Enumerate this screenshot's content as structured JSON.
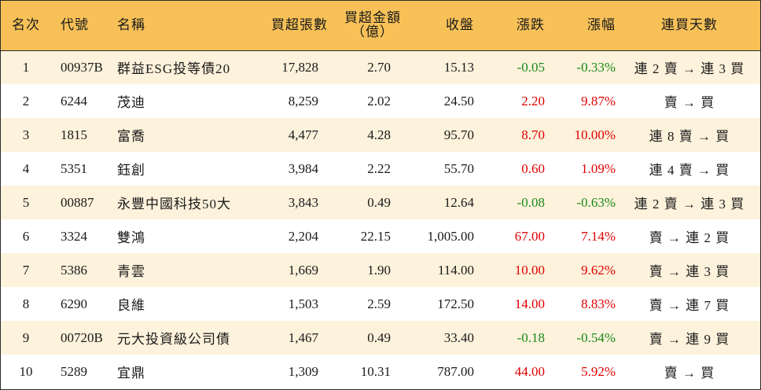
{
  "colors": {
    "header_bg": "#f7c158",
    "row_alt_bg": "#fdf2dc",
    "up": "#e00000",
    "down": "#1a8a1a"
  },
  "headers": {
    "rank": "名次",
    "code": "代號",
    "name": "名稱",
    "net_buy_lots": "買超張數",
    "net_buy_amount_line1": "買超金額",
    "net_buy_amount_line2": "（億）",
    "close": "收盤",
    "change": "漲跌",
    "change_pct": "漲幅",
    "buy_streak": "連買天數"
  },
  "rows": [
    {
      "rank": "1",
      "code": "00937B",
      "name": "群益ESG投等債20",
      "lots": "17,828",
      "amount": "2.70",
      "close": "15.13",
      "change": "-0.05",
      "pct": "-0.33%",
      "direction": "down",
      "streak": "連 2 賣 → 連 3 買"
    },
    {
      "rank": "2",
      "code": "6244",
      "name": "茂迪",
      "lots": "8,259",
      "amount": "2.02",
      "close": "24.50",
      "change": "2.20",
      "pct": "9.87%",
      "direction": "up",
      "streak": "賣 → 買"
    },
    {
      "rank": "3",
      "code": "1815",
      "name": "富喬",
      "lots": "4,477",
      "amount": "4.28",
      "close": "95.70",
      "change": "8.70",
      "pct": "10.00%",
      "direction": "up",
      "streak": "連 8 賣 → 買"
    },
    {
      "rank": "4",
      "code": "5351",
      "name": "鈺創",
      "lots": "3,984",
      "amount": "2.22",
      "close": "55.70",
      "change": "0.60",
      "pct": "1.09%",
      "direction": "up",
      "streak": "連 4 賣 → 買"
    },
    {
      "rank": "5",
      "code": "00887",
      "name": "永豐中國科技50大",
      "lots": "3,843",
      "amount": "0.49",
      "close": "12.64",
      "change": "-0.08",
      "pct": "-0.63%",
      "direction": "down",
      "streak": "連 2 賣 → 連 3 買"
    },
    {
      "rank": "6",
      "code": "3324",
      "name": "雙鴻",
      "lots": "2,204",
      "amount": "22.15",
      "close": "1,005.00",
      "change": "67.00",
      "pct": "7.14%",
      "direction": "up",
      "streak": "賣 → 連 2 買"
    },
    {
      "rank": "7",
      "code": "5386",
      "name": "青雲",
      "lots": "1,669",
      "amount": "1.90",
      "close": "114.00",
      "change": "10.00",
      "pct": "9.62%",
      "direction": "up",
      "streak": "賣 → 連 3 買"
    },
    {
      "rank": "8",
      "code": "6290",
      "name": "良維",
      "lots": "1,503",
      "amount": "2.59",
      "close": "172.50",
      "change": "14.00",
      "pct": "8.83%",
      "direction": "up",
      "streak": "賣 → 連 7 買"
    },
    {
      "rank": "9",
      "code": "00720B",
      "name": "元大投資級公司債",
      "lots": "1,467",
      "amount": "0.49",
      "close": "33.40",
      "change": "-0.18",
      "pct": "-0.54%",
      "direction": "down",
      "streak": "賣 → 連 9 買"
    },
    {
      "rank": "10",
      "code": "5289",
      "name": "宜鼎",
      "lots": "1,309",
      "amount": "10.31",
      "close": "787.00",
      "change": "44.00",
      "pct": "5.92%",
      "direction": "up",
      "streak": "賣 → 買"
    }
  ]
}
